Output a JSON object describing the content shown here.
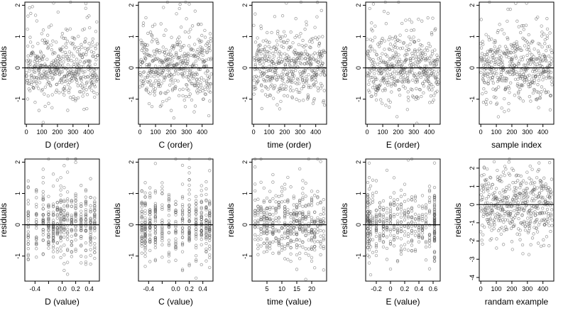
{
  "chart_data": [
    {
      "type": "scatter",
      "xlabel": "D (order)",
      "ylabel": "residuals",
      "xlim": [
        -10,
        470
      ],
      "ylim": [
        -1.8,
        2.1
      ],
      "xticks": [
        0,
        100,
        200,
        300,
        400
      ],
      "yticks": [
        -1,
        0,
        1,
        2
      ],
      "refline_y": 0,
      "generator": {
        "kind": "index",
        "n": 460,
        "seed": 11
      }
    },
    {
      "type": "scatter",
      "xlabel": "C (order)",
      "ylabel": "residuals",
      "xlim": [
        -10,
        470
      ],
      "ylim": [
        -1.8,
        2.1
      ],
      "xticks": [
        0,
        100,
        200,
        300,
        400
      ],
      "yticks": [
        -1,
        0,
        1,
        2
      ],
      "refline_y": 0,
      "generator": {
        "kind": "index",
        "n": 460,
        "seed": 23
      }
    },
    {
      "type": "scatter",
      "xlabel": "time (order)",
      "ylabel": "residuals",
      "xlim": [
        -10,
        470
      ],
      "ylim": [
        -1.8,
        2.1
      ],
      "xticks": [
        0,
        100,
        200,
        300,
        400
      ],
      "yticks": [
        -1,
        0,
        1,
        2
      ],
      "refline_y": 0,
      "generator": {
        "kind": "index",
        "n": 460,
        "seed": 37
      }
    },
    {
      "type": "scatter",
      "xlabel": "E (order)",
      "ylabel": "residuals",
      "xlim": [
        -10,
        470
      ],
      "ylim": [
        -1.8,
        2.1
      ],
      "xticks": [
        0,
        100,
        200,
        300,
        400
      ],
      "yticks": [
        -1,
        0,
        1,
        2
      ],
      "refline_y": 0,
      "generator": {
        "kind": "index",
        "n": 460,
        "seed": 41
      }
    },
    {
      "type": "scatter",
      "xlabel": "sample index",
      "ylabel": "residuals",
      "xlim": [
        -10,
        470
      ],
      "ylim": [
        -1.8,
        2.1
      ],
      "xticks": [
        0,
        100,
        200,
        300,
        400
      ],
      "yticks": [
        -1,
        0,
        1,
        2
      ],
      "refline_y": 0,
      "generator": {
        "kind": "index",
        "n": 460,
        "seed": 53
      }
    },
    {
      "type": "scatter",
      "xlabel": "D (value)",
      "ylabel": "residuals",
      "xlim": [
        -0.55,
        0.55
      ],
      "ylim": [
        -1.8,
        2.1
      ],
      "xticks": [
        -0.4,
        -0.2,
        0.0,
        0.2,
        0.4
      ],
      "xtick_labels": [
        "-0.4",
        "",
        "0.0",
        "0.2",
        "0.4"
      ],
      "yticks": [
        -1,
        0,
        1,
        2
      ],
      "refline_y": 0,
      "generator": {
        "kind": "levels",
        "n": 460,
        "seed": 61,
        "levels": [
          -0.5,
          -0.38,
          -0.28,
          -0.2,
          -0.13,
          -0.07,
          -0.02,
          0.03,
          0.08,
          0.14,
          0.2,
          0.28,
          0.35,
          0.42,
          0.48
        ]
      }
    },
    {
      "type": "scatter",
      "xlabel": "C (value)",
      "ylabel": "residuals",
      "xlim": [
        -0.55,
        0.55
      ],
      "ylim": [
        -1.8,
        2.1
      ],
      "xticks": [
        -0.4,
        -0.2,
        0.0,
        0.2,
        0.4
      ],
      "xtick_labels": [
        "-0.4",
        "",
        "0.0",
        "0.2",
        "0.4"
      ],
      "yticks": [
        -1,
        0,
        1,
        2
      ],
      "refline_y": 0,
      "generator": {
        "kind": "levels",
        "n": 460,
        "seed": 71,
        "levels": [
          -0.5,
          -0.45,
          -0.38,
          -0.3,
          -0.2,
          -0.1,
          0.0,
          0.1,
          0.2,
          0.3,
          0.38,
          0.45,
          0.5
        ]
      }
    },
    {
      "type": "scatter",
      "xlabel": "time (value)",
      "ylabel": "residuals",
      "xlim": [
        0,
        25
      ],
      "ylim": [
        -1.8,
        2.1
      ],
      "xticks": [
        5,
        10,
        15,
        20
      ],
      "yticks": [
        -1,
        0,
        1,
        2
      ],
      "refline_y": 0,
      "generator": {
        "kind": "levels",
        "n": 460,
        "seed": 83,
        "levels": [
          1,
          2,
          3,
          4,
          5,
          6,
          7,
          8,
          9,
          10,
          11,
          12,
          13,
          14,
          15,
          16,
          17,
          18,
          19,
          20,
          21,
          22,
          23,
          24
        ]
      }
    },
    {
      "type": "scatter",
      "xlabel": "E (value)",
      "ylabel": "residuals",
      "xlim": [
        -0.35,
        0.7
      ],
      "ylim": [
        -1.8,
        2.1
      ],
      "xticks": [
        -0.2,
        0.0,
        0.2,
        0.4,
        0.6
      ],
      "yticks": [
        -1,
        0,
        1,
        2
      ],
      "refline_y": 0,
      "generator": {
        "kind": "levels",
        "n": 460,
        "seed": 97,
        "levels": [
          -0.32,
          -0.32,
          -0.32,
          -0.3,
          -0.3,
          -0.28,
          -0.25,
          -0.2,
          -0.15,
          -0.1,
          -0.05,
          0.0,
          0.05,
          0.1,
          0.15,
          0.2,
          0.25,
          0.3,
          0.35,
          0.4,
          0.45,
          0.5,
          0.55,
          0.62,
          0.62,
          0.62
        ]
      }
    },
    {
      "type": "scatter",
      "xlabel": "randam example",
      "ylabel": "residuals",
      "xlim": [
        -10,
        470
      ],
      "ylim": [
        -4.2,
        2.5
      ],
      "xticks": [
        0,
        100,
        200,
        300,
        400
      ],
      "yticks": [
        -4,
        -3,
        -2,
        -1,
        0,
        1,
        2
      ],
      "refline_y": 0,
      "generator": {
        "kind": "random",
        "n": 460,
        "seed": 101
      }
    }
  ]
}
